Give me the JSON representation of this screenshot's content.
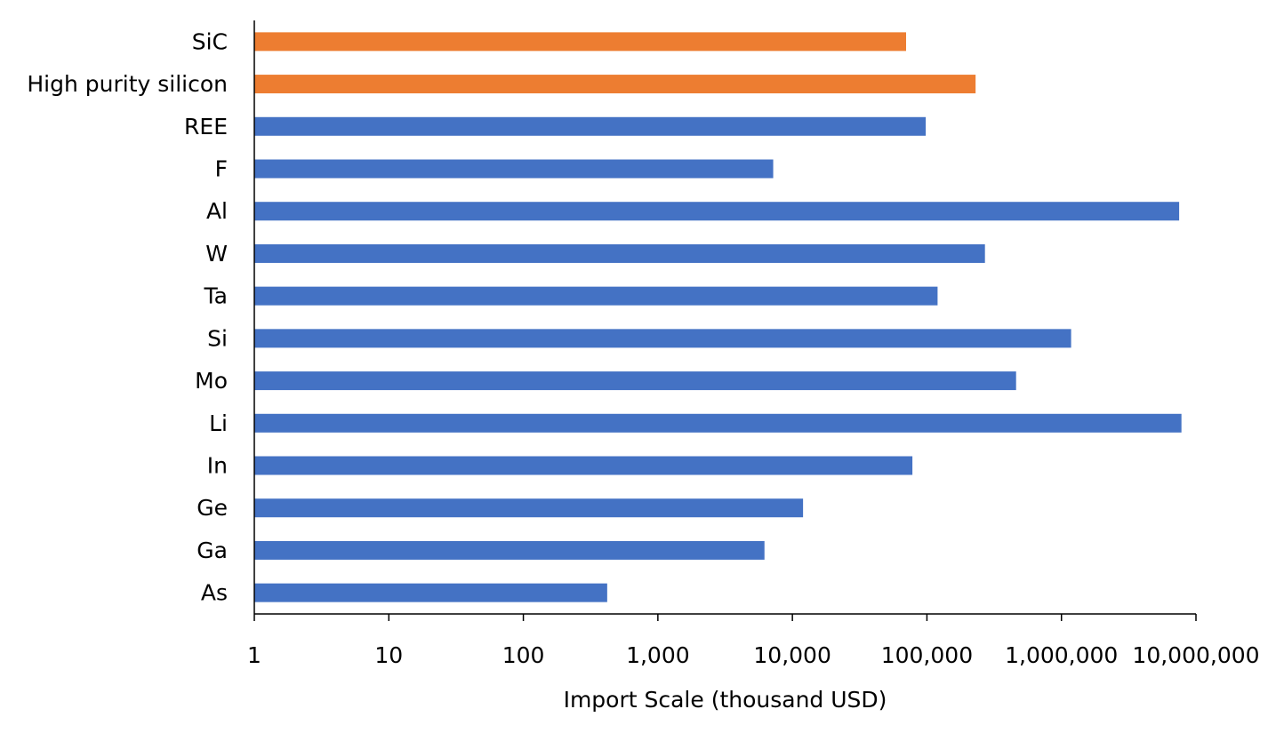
{
  "chart_data": {
    "type": "bar",
    "orientation": "horizontal",
    "xscale": "log",
    "xlim": [
      1,
      10000000
    ],
    "xlabel": "Import Scale (thousand USD)",
    "ylabel": "",
    "title": "",
    "grid": false,
    "x_ticks": [
      "1",
      "10",
      "100",
      "1,000",
      "10,000",
      "100,000",
      "1,000,000",
      "10,000,000"
    ],
    "categories": [
      "SiC",
      "High purity silicon",
      "REE",
      "F",
      "Al",
      "W",
      "Ta",
      "Si",
      "Mo",
      "Li",
      "In",
      "Ge",
      "Ga",
      "As"
    ],
    "values": [
      70000,
      230000,
      98000,
      7200,
      7500000,
      270000,
      120000,
      1180000,
      460000,
      7800000,
      78000,
      12000,
      6200,
      420
    ],
    "bar_colors": [
      "#ED7D31",
      "#ED7D31",
      "#4472C4",
      "#4472C4",
      "#4472C4",
      "#4472C4",
      "#4472C4",
      "#4472C4",
      "#4472C4",
      "#4472C4",
      "#4472C4",
      "#4472C4",
      "#4472C4",
      "#4472C4"
    ]
  }
}
